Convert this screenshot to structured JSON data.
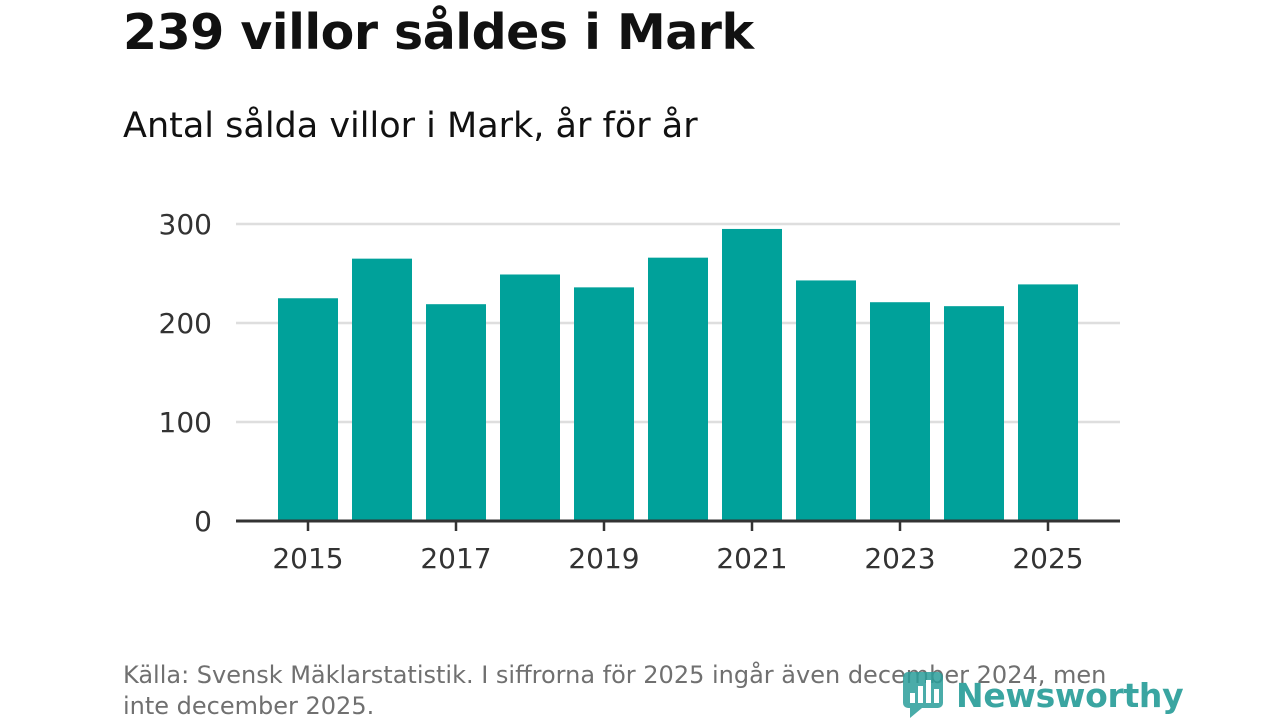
{
  "header": {
    "title": "239 villor såldes i Mark",
    "subtitle": "Antal sålda villor i Mark, år för år"
  },
  "chart_data": {
    "type": "bar",
    "categories": [
      "2015",
      "2016",
      "2017",
      "2018",
      "2019",
      "2020",
      "2021",
      "2022",
      "2023",
      "2024",
      "2025"
    ],
    "values": [
      225,
      265,
      219,
      249,
      236,
      266,
      295,
      243,
      221,
      217,
      239
    ],
    "x_tick_labels": [
      "2015",
      "2017",
      "2019",
      "2021",
      "2023",
      "2025"
    ],
    "y_ticks": [
      0,
      100,
      200,
      300
    ],
    "ylim": [
      0,
      300
    ],
    "xlabel": "",
    "ylabel": "",
    "grid": true,
    "bar_color": "#00a19a"
  },
  "footer": {
    "source": "Källa: Svensk Mäklarstatistik. I siffrorna för 2025 ingår även december 2024, men inte december 2025."
  },
  "brand": {
    "name": "Newsworthy",
    "color": "#2a9e9a",
    "icon": "newsworthy-logo-icon"
  }
}
